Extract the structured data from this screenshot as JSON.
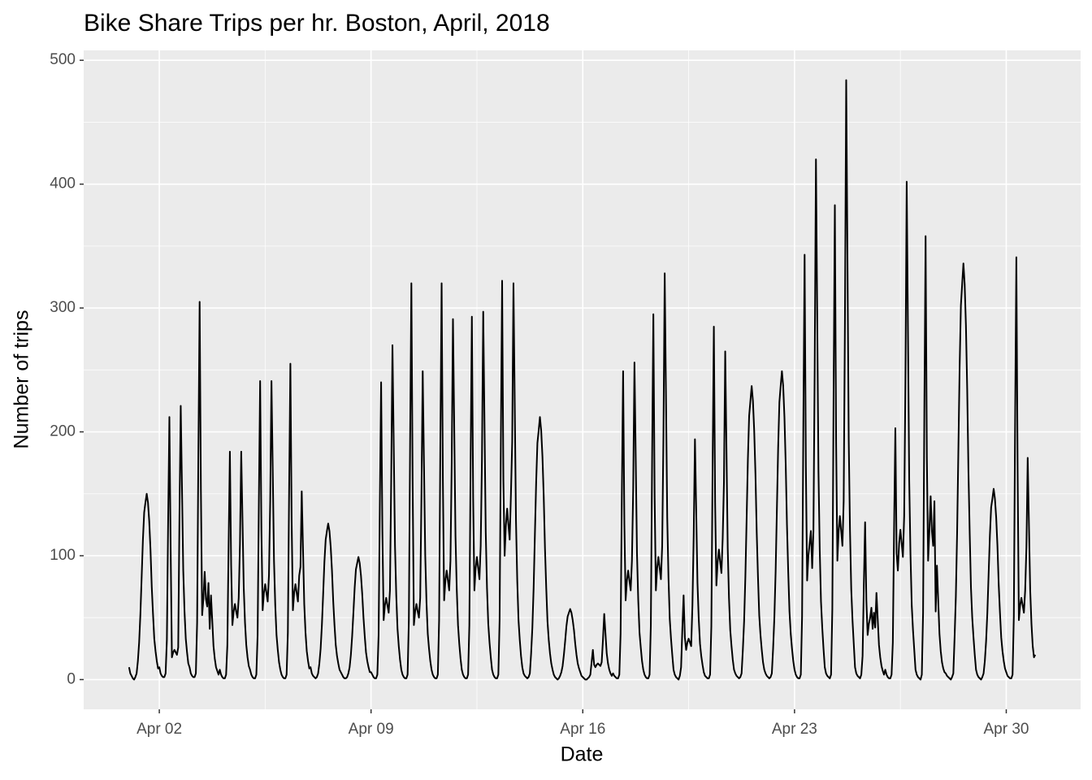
{
  "chart_data": {
    "type": "line",
    "title": "Bike Share Trips per hr. Boston, April, 2018",
    "x_label": "Date",
    "y_label": "Number of trips",
    "color": "#000000",
    "grid": true,
    "xlim": [
      -36,
      755
    ],
    "ylim": [
      -24,
      508
    ],
    "xticks": [
      {
        "value": 24,
        "label": "Apr 02"
      },
      {
        "value": 192,
        "label": "Apr 09"
      },
      {
        "value": 360,
        "label": "Apr 16"
      },
      {
        "value": 528,
        "label": "Apr 23"
      },
      {
        "value": 696,
        "label": "Apr 30"
      }
    ],
    "yticks": [
      0,
      100,
      200,
      300,
      400,
      500
    ],
    "x": [
      0,
      1,
      2,
      3,
      4,
      5,
      6,
      7,
      8,
      9,
      10,
      11,
      12,
      13,
      14,
      15,
      16,
      17,
      18,
      19,
      20,
      21,
      22,
      23,
      24,
      25,
      26,
      27,
      28,
      29,
      30,
      31,
      32,
      33,
      34,
      35,
      36,
      37,
      38,
      39,
      40,
      41,
      42,
      43,
      44,
      45,
      46,
      47,
      48,
      49,
      50,
      51,
      52,
      53,
      54,
      55,
      56,
      57,
      58,
      59,
      60,
      61,
      62,
      63,
      64,
      65,
      66,
      67,
      68,
      69,
      70,
      71,
      72,
      73,
      74,
      75,
      76,
      77,
      78,
      79,
      80,
      81,
      82,
      83,
      84,
      85,
      86,
      87,
      88,
      89,
      90,
      91,
      92,
      93,
      94,
      95,
      96,
      97,
      98,
      99,
      100,
      101,
      102,
      103,
      104,
      105,
      106,
      107,
      108,
      109,
      110,
      111,
      112,
      113,
      114,
      115,
      116,
      117,
      118,
      119,
      120,
      121,
      122,
      123,
      124,
      125,
      126,
      127,
      128,
      129,
      130,
      131,
      132,
      133,
      134,
      135,
      136,
      137,
      138,
      139,
      140,
      141,
      142,
      143,
      144,
      145,
      146,
      147,
      148,
      149,
      150,
      151,
      152,
      153,
      154,
      155,
      156,
      157,
      158,
      159,
      160,
      161,
      162,
      163,
      164,
      165,
      166,
      167,
      168,
      169,
      170,
      171,
      172,
      173,
      174,
      175,
      176,
      177,
      178,
      179,
      180,
      181,
      182,
      183,
      184,
      185,
      186,
      187,
      188,
      189,
      190,
      191,
      192,
      193,
      194,
      195,
      196,
      197,
      198,
      199,
      200,
      201,
      202,
      203,
      204,
      205,
      206,
      207,
      208,
      209,
      210,
      211,
      212,
      213,
      214,
      215,
      216,
      217,
      218,
      219,
      220,
      221,
      222,
      223,
      224,
      225,
      226,
      227,
      228,
      229,
      230,
      231,
      232,
      233,
      234,
      235,
      236,
      237,
      238,
      239,
      240,
      241,
      242,
      243,
      244,
      245,
      246,
      247,
      248,
      249,
      250,
      251,
      252,
      253,
      254,
      255,
      256,
      257,
      258,
      259,
      260,
      261,
      262,
      263,
      264,
      265,
      266,
      267,
      268,
      269,
      270,
      271,
      272,
      273,
      274,
      275,
      276,
      277,
      278,
      279,
      280,
      281,
      282,
      283,
      284,
      285,
      286,
      287,
      288,
      289,
      290,
      291,
      292,
      293,
      294,
      295,
      296,
      297,
      298,
      299,
      300,
      301,
      302,
      303,
      304,
      305,
      306,
      307,
      308,
      309,
      310,
      311,
      312,
      313,
      314,
      315,
      316,
      317,
      318,
      319,
      320,
      321,
      322,
      323,
      324,
      325,
      326,
      327,
      328,
      329,
      330,
      331,
      332,
      333,
      334,
      335,
      336,
      337,
      338,
      339,
      340,
      341,
      342,
      343,
      344,
      345,
      346,
      347,
      348,
      349,
      350,
      351,
      352,
      353,
      354,
      355,
      356,
      357,
      358,
      359,
      360,
      361,
      362,
      363,
      364,
      365,
      366,
      367,
      368,
      369,
      370,
      371,
      372,
      373,
      374,
      375,
      376,
      377,
      378,
      379,
      380,
      381,
      382,
      383,
      384,
      385,
      386,
      387,
      388,
      389,
      390,
      391,
      392,
      393,
      394,
      395,
      396,
      397,
      398,
      399,
      400,
      401,
      402,
      403,
      404,
      405,
      406,
      407,
      408,
      409,
      410,
      411,
      412,
      413,
      414,
      415,
      416,
      417,
      418,
      419,
      420,
      421,
      422,
      423,
      424,
      425,
      426,
      427,
      428,
      429,
      430,
      431,
      432,
      433,
      434,
      435,
      436,
      437,
      438,
      439,
      440,
      441,
      442,
      443,
      444,
      445,
      446,
      447,
      448,
      449,
      450,
      451,
      452,
      453,
      454,
      455,
      456,
      457,
      458,
      459,
      460,
      461,
      462,
      463,
      464,
      465,
      466,
      467,
      468,
      469,
      470,
      471,
      472,
      473,
      474,
      475,
      476,
      477,
      478,
      479,
      480,
      481,
      482,
      483,
      484,
      485,
      486,
      487,
      488,
      489,
      490,
      491,
      492,
      493,
      494,
      495,
      496,
      497,
      498,
      499,
      500,
      501,
      502,
      503,
      504,
      505,
      506,
      507,
      508,
      509,
      510,
      511,
      512,
      513,
      514,
      515,
      516,
      517,
      518,
      519,
      520,
      521,
      522,
      523,
      524,
      525,
      526,
      527,
      528,
      529,
      530,
      531,
      532,
      533,
      534,
      535,
      536,
      537,
      538,
      539,
      540,
      541,
      542,
      543,
      544,
      545,
      546,
      547,
      548,
      549,
      550,
      551,
      552,
      553,
      554,
      555,
      556,
      557,
      558,
      559,
      560,
      561,
      562,
      563,
      564,
      565,
      566,
      567,
      568,
      569,
      570,
      571,
      572,
      573,
      574,
      575,
      576,
      577,
      578,
      579,
      580,
      581,
      582,
      583,
      584,
      585,
      586,
      587,
      588,
      589,
      590,
      591,
      592,
      593,
      594,
      595,
      596,
      597,
      598,
      599,
      600,
      601,
      602,
      603,
      604,
      605,
      606,
      607,
      608,
      609,
      610,
      611,
      612,
      613,
      614,
      615,
      616,
      617,
      618,
      619,
      620,
      621,
      622,
      623,
      624,
      625,
      626,
      627,
      628,
      629,
      630,
      631,
      632,
      633,
      634,
      635,
      636,
      637,
      638,
      639,
      640,
      641,
      642,
      643,
      644,
      645,
      646,
      647,
      648,
      649,
      650,
      651,
      652,
      653,
      654,
      655,
      656,
      657,
      658,
      659,
      660,
      661,
      662,
      663,
      664,
      665,
      666,
      667,
      668,
      669,
      670,
      671,
      672,
      673,
      674,
      675,
      676,
      677,
      678,
      679,
      680,
      681,
      682,
      683,
      684,
      685,
      686,
      687,
      688,
      689,
      690,
      691,
      692,
      693,
      694,
      695,
      696,
      697,
      698,
      699,
      700,
      701,
      702,
      703,
      704,
      705,
      706,
      707,
      708,
      709,
      710,
      711,
      712,
      713,
      714,
      715,
      716,
      717,
      718,
      719
    ],
    "values": [
      10,
      5,
      3,
      1,
      0,
      2,
      5,
      15,
      30,
      53,
      83,
      113,
      135,
      143,
      150,
      143,
      128,
      105,
      75,
      53,
      33,
      23,
      15,
      9,
      10,
      5,
      3,
      2,
      2,
      5,
      32,
      127,
      212,
      106,
      18,
      22,
      24,
      22,
      20,
      26,
      133,
      221,
      155,
      88,
      55,
      33,
      22,
      13,
      10,
      5,
      3,
      2,
      2,
      5,
      46,
      183,
      305,
      153,
      52,
      65,
      87,
      65,
      59,
      78,
      41,
      68,
      48,
      27,
      17,
      10,
      7,
      4,
      8,
      4,
      2,
      1,
      1,
      4,
      28,
      110,
      184,
      92,
      44,
      55,
      61,
      55,
      50,
      66,
      110,
      184,
      129,
      74,
      46,
      28,
      18,
      11,
      8,
      4,
      2,
      1,
      1,
      4,
      36,
      145,
      241,
      121,
      56,
      70,
      77,
      70,
      63,
      84,
      145,
      241,
      169,
      96,
      60,
      36,
      24,
      14,
      8,
      4,
      2,
      1,
      1,
      4,
      38,
      153,
      255,
      128,
      56,
      70,
      77,
      70,
      63,
      84,
      91,
      152,
      106,
      61,
      38,
      23,
      15,
      9,
      10,
      5,
      3,
      2,
      1,
      2,
      5,
      13,
      25,
      44,
      69,
      95,
      113,
      120,
      126,
      120,
      107,
      88,
      63,
      44,
      28,
      19,
      13,
      8,
      6,
      4,
      2,
      1,
      1,
      2,
      5,
      10,
      20,
      35,
      54,
      74,
      89,
      94,
      99,
      94,
      84,
      69,
      50,
      35,
      22,
      15,
      10,
      6,
      6,
      4,
      2,
      1,
      1,
      4,
      36,
      144,
      240,
      120,
      48,
      60,
      66,
      60,
      54,
      72,
      162,
      270,
      189,
      108,
      68,
      41,
      27,
      16,
      8,
      4,
      2,
      1,
      1,
      4,
      48,
      192,
      320,
      160,
      44,
      55,
      61,
      55,
      50,
      66,
      149,
      249,
      174,
      100,
      62,
      37,
      25,
      15,
      8,
      4,
      2,
      1,
      1,
      4,
      48,
      192,
      320,
      160,
      64,
      80,
      88,
      80,
      72,
      96,
      175,
      291,
      204,
      116,
      73,
      44,
      29,
      17,
      8,
      4,
      2,
      1,
      1,
      4,
      44,
      176,
      293,
      147,
      72,
      90,
      99,
      90,
      81,
      108,
      178,
      297,
      208,
      119,
      74,
      45,
      30,
      18,
      8,
      4,
      2,
      1,
      1,
      4,
      48,
      193,
      322,
      161,
      100,
      125,
      138,
      125,
      113,
      150,
      192,
      320,
      224,
      128,
      80,
      48,
      32,
      19,
      10,
      5,
      3,
      2,
      1,
      2,
      5,
      21,
      42,
      74,
      117,
      159,
      191,
      201,
      212,
      201,
      180,
      148,
      106,
      74,
      47,
      32,
      21,
      13,
      8,
      4,
      2,
      1,
      0,
      1,
      3,
      6,
      11,
      20,
      31,
      43,
      51,
      54,
      57,
      54,
      48,
      40,
      29,
      20,
      13,
      9,
      6,
      3,
      2,
      1,
      0,
      0,
      1,
      2,
      4,
      14,
      24,
      12,
      10,
      12,
      13,
      12,
      11,
      14,
      32,
      53,
      37,
      21,
      13,
      8,
      5,
      3,
      5,
      3,
      2,
      1,
      1,
      4,
      37,
      149,
      249,
      125,
      64,
      80,
      88,
      80,
      72,
      96,
      154,
      256,
      179,
      102,
      64,
      38,
      26,
      15,
      8,
      4,
      2,
      1,
      1,
      4,
      44,
      177,
      295,
      148,
      72,
      90,
      99,
      90,
      81,
      108,
      197,
      328,
      230,
      131,
      82,
      49,
      33,
      20,
      8,
      4,
      2,
      1,
      0,
      3,
      10,
      41,
      68,
      34,
      24,
      30,
      33,
      30,
      27,
      60,
      116,
      194,
      136,
      78,
      49,
      29,
      19,
      12,
      6,
      3,
      2,
      1,
      1,
      4,
      43,
      171,
      285,
      143,
      76,
      95,
      105,
      95,
      86,
      114,
      159,
      265,
      186,
      106,
      66,
      40,
      27,
      16,
      8,
      5,
      3,
      2,
      1,
      2,
      5,
      24,
      47,
      83,
      130,
      178,
      213,
      225,
      237,
      225,
      201,
      166,
      119,
      83,
      52,
      36,
      24,
      14,
      8,
      5,
      3,
      2,
      1,
      2,
      5,
      25,
      50,
      87,
      137,
      187,
      224,
      237,
      249,
      237,
      212,
      174,
      125,
      87,
      55,
      37,
      25,
      15,
      8,
      4,
      2,
      1,
      1,
      4,
      51,
      206,
      343,
      172,
      80,
      100,
      110,
      120,
      90,
      120,
      252,
      420,
      294,
      168,
      105,
      63,
      42,
      25,
      10,
      5,
      3,
      2,
      1,
      4,
      57,
      230,
      383,
      192,
      96,
      120,
      132,
      120,
      108,
      144,
      290,
      484,
      339,
      194,
      121,
      73,
      48,
      29,
      10,
      5,
      3,
      2,
      1,
      4,
      19,
      76,
      127,
      64,
      36,
      45,
      50,
      58,
      41,
      54,
      42,
      70,
      49,
      28,
      18,
      11,
      7,
      4,
      8,
      4,
      2,
      1,
      1,
      4,
      30,
      122,
      203,
      102,
      88,
      110,
      121,
      110,
      99,
      132,
      241,
      402,
      281,
      161,
      101,
      60,
      40,
      24,
      8,
      4,
      2,
      1,
      0,
      4,
      54,
      215,
      358,
      179,
      96,
      120,
      148,
      120,
      108,
      144,
      55,
      92,
      64,
      37,
      23,
      14,
      9,
      6,
      5,
      3,
      2,
      1,
      0,
      2,
      5,
      34,
      67,
      118,
      185,
      252,
      302,
      319,
      336,
      319,
      286,
      235,
      168,
      118,
      74,
      50,
      34,
      20,
      8,
      4,
      2,
      1,
      0,
      2,
      5,
      15,
      31,
      54,
      85,
      116,
      139,
      146,
      154,
      146,
      131,
      108,
      77,
      54,
      34,
      23,
      15,
      9,
      6,
      3,
      2,
      1,
      1,
      4,
      51,
      205,
      341,
      171,
      48,
      60,
      66,
      60,
      54,
      72,
      107,
      179,
      125,
      72,
      45,
      27,
      18,
      20
    ]
  }
}
